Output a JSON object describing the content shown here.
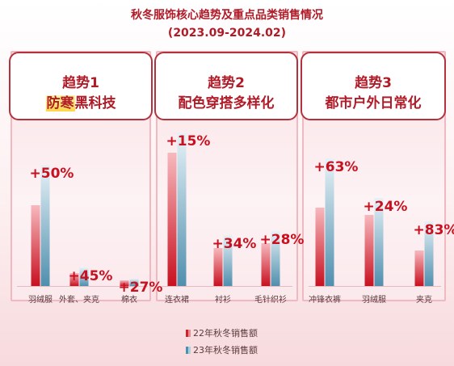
{
  "header": {
    "title": "秋冬服饰核心趋势及重点品类销售情况",
    "subtitle": "(2023.09-2024.02)"
  },
  "panels": [
    {
      "line1": "趋势1",
      "line2_highlight": "防寒",
      "line2_rest": "黑科技"
    },
    {
      "line1": "趋势2",
      "line2_highlight": "",
      "line2_rest": "配色穿搭多样化"
    },
    {
      "line1": "趋势3",
      "line2_highlight": "",
      "line2_rest": "都市户外日常化"
    }
  ],
  "legend": {
    "series_22": "22年秋冬销售额",
    "series_23": "23年秋冬销售额"
  },
  "colors": {
    "accent": "#b01b28",
    "series_22": "#d0202e",
    "series_23": "#7fb3c8"
  },
  "chart_data": {
    "type": "bar",
    "title": "秋冬服饰核心趋势及重点品类销售情况",
    "subtitle": "(2023.09-2024.02)",
    "series_names": [
      "22年秋冬销售额",
      "23年秋冬销售额"
    ],
    "groups": [
      {
        "name": "趋势1 防寒黑科技",
        "items": [
          {
            "category": "羽绒服",
            "v22": 100,
            "v23": 150,
            "growth": "+50%"
          },
          {
            "category": "外套、夹克",
            "v22": 16,
            "v23": 23,
            "growth": "+45%"
          },
          {
            "category": "棉衣",
            "v22": 7,
            "v23": 9,
            "growth": "+27%"
          }
        ]
      },
      {
        "name": "趋势2 配色穿搭多样化",
        "items": [
          {
            "category": "连衣裙",
            "v22": 165,
            "v23": 190,
            "growth": "+15%"
          },
          {
            "category": "衬衫",
            "v22": 47,
            "v23": 63,
            "growth": "+34%"
          },
          {
            "category": "毛针织衫",
            "v22": 53,
            "v23": 68,
            "growth": "+28%"
          }
        ]
      },
      {
        "name": "趋势3 都市户外日常化",
        "items": [
          {
            "category": "冲锋衣裤",
            "v22": 97,
            "v23": 158,
            "growth": "+63%"
          },
          {
            "category": "羽绒服",
            "v22": 88,
            "v23": 109,
            "growth": "+24%"
          },
          {
            "category": "夹克",
            "v22": 44,
            "v23": 80,
            "growth": "+83%"
          }
        ]
      }
    ]
  }
}
